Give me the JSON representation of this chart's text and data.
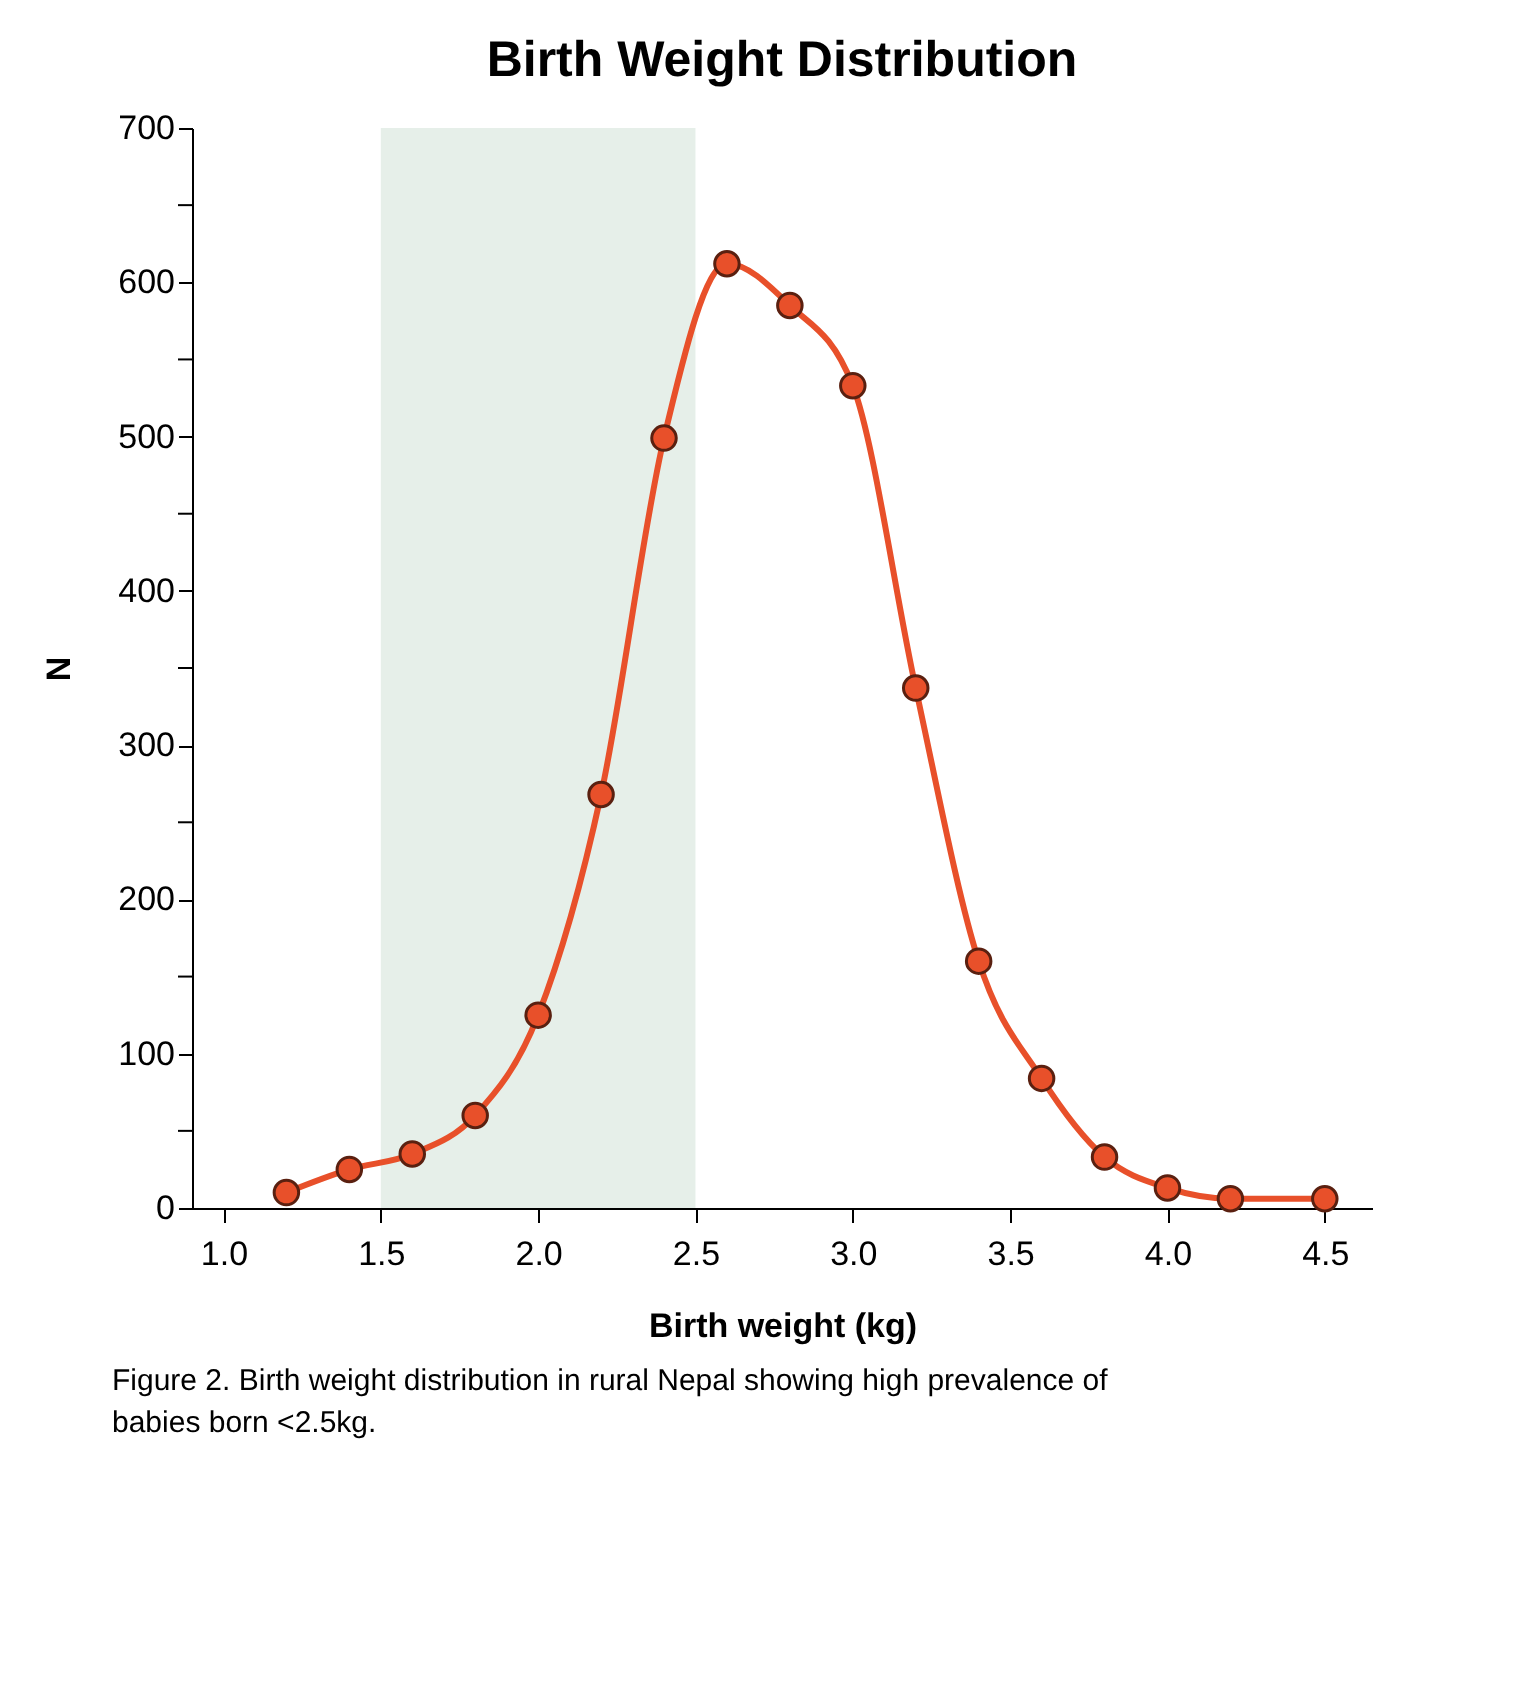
{
  "chart_data": {
    "type": "line",
    "title": "Birth Weight Distribution",
    "xlabel": "Birth weight (kg)",
    "ylabel": "N",
    "x": [
      1.2,
      1.4,
      1.6,
      1.8,
      2.0,
      2.2,
      2.4,
      2.6,
      2.8,
      3.0,
      3.2,
      3.4,
      3.6,
      3.8,
      4.0,
      4.2,
      4.5
    ],
    "series": [
      {
        "color": "#e8502a",
        "values": [
          10,
          25,
          35,
          60,
          125,
          268,
          499,
          612,
          585,
          533,
          337,
          160,
          84,
          33,
          13,
          6,
          6
        ]
      }
    ],
    "xlim": [
      0.9,
      4.65
    ],
    "xticks": [
      {
        "value": 1.0,
        "label": "1.0"
      },
      {
        "value": 1.5,
        "label": "1.5"
      },
      {
        "value": 2.0,
        "label": "2.0"
      },
      {
        "value": 2.5,
        "label": "2.5"
      },
      {
        "value": 3.0,
        "label": "3.0"
      },
      {
        "value": 3.5,
        "label": "3.5"
      },
      {
        "value": 4.0,
        "label": "4.0"
      },
      {
        "value": 4.5,
        "label": "4.5"
      }
    ],
    "ylim": [
      0,
      700
    ],
    "yticks": [
      0,
      {
        "value": 50,
        "label": null
      },
      100,
      {
        "value": 150,
        "label": null
      },
      200,
      {
        "value": 250,
        "label": null
      },
      300,
      {
        "value": 350,
        "label": null
      },
      400,
      {
        "value": 450,
        "label": null
      },
      500,
      {
        "value": 550,
        "label": null
      },
      600,
      {
        "value": 650,
        "label": null
      },
      700
    ],
    "bands": [
      {
        "axis": "x",
        "from": 1.5,
        "to": 2.5,
        "color": "#e6efe9"
      }
    ],
    "marker": "circle",
    "line_style": "solid",
    "grid": false,
    "annotations": [
      "Figure 2. Birth weight distribution in rural Nepal showing high prevalence of babies born <2.5kg."
    ]
  }
}
